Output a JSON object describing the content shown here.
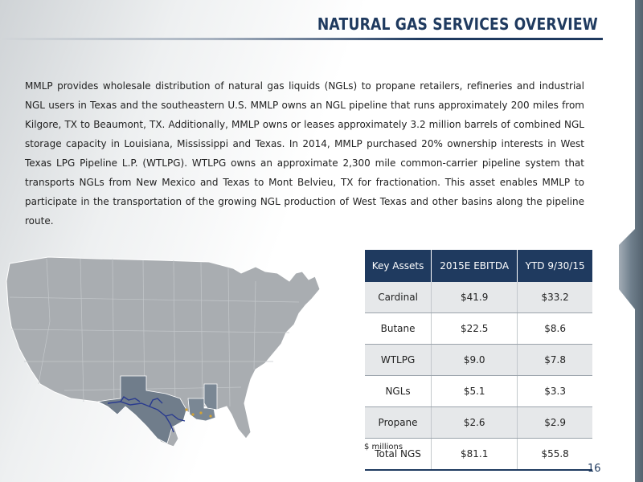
{
  "header": {
    "title": "NATURAL GAS SERVICES OVERVIEW"
  },
  "body": {
    "paragraph": "MMLP provides wholesale distribution of natural gas liquids (NGLs) to propane retailers, refineries and industrial NGL users in Texas and the southeastern U.S.  MMLP owns an NGL pipeline that runs approximately 200 miles from Kilgore, TX to Beaumont, TX.  Additionally, MMLP owns or leases approximately 3.2 million barrels of combined NGL storage capacity in Louisiana, Mississippi and Texas.  In 2014, MMLP purchased 20% ownership interests in West Texas LPG Pipeline L.P. (WTLPG).  WTLPG owns an approximate 2,300 mile common-carrier pipeline system that transports NGLs from New Mexico and Texas to Mont Belvieu, TX for fractionation.  This asset enables MMLP to participate in the transportation of the growing NGL production of West Texas and other basins along the pipeline route."
  },
  "table": {
    "headers": [
      "Key Assets",
      "2015E EBITDA",
      "YTD 9/30/15"
    ],
    "rows": [
      [
        "Cardinal",
        "$41.9",
        "$33.2"
      ],
      [
        "Butane",
        "$22.5",
        "$8.6"
      ],
      [
        "WTLPG",
        "$9.0",
        "$7.8"
      ],
      [
        "NGLs",
        "$5.1",
        "$3.3"
      ],
      [
        "Propane",
        "$2.6",
        "$2.9"
      ],
      [
        "Total NGS",
        "$81.1",
        "$55.8"
      ]
    ],
    "note": "$ millions"
  },
  "footer": {
    "page_number": "16"
  },
  "colors": {
    "title": "#1f3a5f",
    "table_header": "#1f3a5f",
    "map_states": "#a9adb1",
    "map_highlight": "#707d8b",
    "pipeline": "#2a3b8f",
    "right_band": "#6f7f8c"
  },
  "map": {
    "icon": "us-map-with-highlighted-states"
  }
}
